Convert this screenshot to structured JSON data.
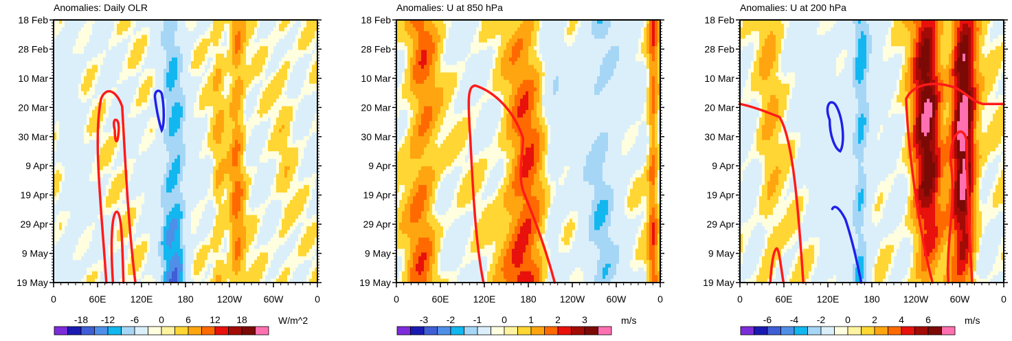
{
  "chart_data": [
    {
      "type": "heatmap",
      "title": "Anomalies: Daily OLR",
      "xlabel": "",
      "ylabel": "",
      "x_ticks": [
        "0",
        "60E",
        "120E",
        "180",
        "120W",
        "60W",
        "0"
      ],
      "y_ticks": [
        "18 Feb",
        "28 Feb",
        "10 Mar",
        "20 Mar",
        "30 Mar",
        "9 Apr",
        "19 Apr",
        "29 Apr",
        "9 May",
        "19 May"
      ],
      "y_direction": "time increases downward",
      "colorbar": {
        "ticks": [
          "-18",
          "-12",
          "-6",
          "0",
          "6",
          "12",
          "18"
        ],
        "unit": "W/m^2"
      },
      "dominant_features": [
        {
          "longitude": "150E-180",
          "sign": "negative",
          "peak_value": -18
        },
        {
          "longitude": "120W-90W",
          "sign": "positive",
          "peak_value": 8
        }
      ],
      "contours": [
        {
          "color": "red",
          "note": "closed contour ~60E-100E, 18 Mar - 19 May"
        },
        {
          "color": "blue",
          "note": "small contour ~145E-150E, 13 Mar - 27 Mar"
        }
      ]
    },
    {
      "type": "heatmap",
      "title": "Anomalies: U at 850 hPa",
      "xlabel": "",
      "ylabel": "",
      "x_ticks": [
        "0",
        "60E",
        "120E",
        "180",
        "120W",
        "60W",
        "0"
      ],
      "y_ticks": [
        "18 Feb",
        "28 Feb",
        "10 Mar",
        "20 Mar",
        "30 Mar",
        "9 Apr",
        "19 Apr",
        "29 Apr",
        "9 May",
        "19 May"
      ],
      "y_direction": "time increases downward",
      "colorbar": {
        "ticks": [
          "-3",
          "-2",
          "-1",
          "0",
          "1",
          "2",
          "3"
        ],
        "unit": "m/s"
      },
      "dominant_features": [
        {
          "longitude": "150E-200E",
          "sign": "positive",
          "peak_value": 2
        },
        {
          "longitude": "120W-60W",
          "sign": "negative",
          "peak_value": -1
        }
      ],
      "contours": [
        {
          "color": "red",
          "note": "contour ~105E-205E, 12 Mar - 19 May"
        }
      ]
    },
    {
      "type": "heatmap",
      "title": "Anomalies: U at 200 hPa",
      "xlabel": "",
      "ylabel": "",
      "x_ticks": [
        "0",
        "60E",
        "120E",
        "180",
        "120W",
        "60W",
        "0"
      ],
      "y_ticks": [
        "18 Feb",
        "28 Feb",
        "10 Mar",
        "20 Mar",
        "30 Mar",
        "9 Apr",
        "19 Apr",
        "29 Apr",
        "9 May",
        "19 May"
      ],
      "y_direction": "time increases downward",
      "colorbar": {
        "ticks": [
          "-6",
          "-4",
          "-2",
          "0",
          "2",
          "4",
          "6"
        ],
        "unit": "m/s"
      },
      "dominant_features": [
        {
          "longitude": "150E-180",
          "sign": "negative",
          "peak_value": -3
        },
        {
          "longitude": "130W-20W",
          "sign": "positive",
          "peak_value": 7
        }
      ],
      "contours": [
        {
          "color": "red",
          "note": "multiple contours, westward of 120W, 10 Mar - 19 May"
        },
        {
          "color": "blue",
          "note": "closed contour ~115E-140E, 18 Mar - 2 Apr"
        },
        {
          "color": "blue",
          "note": "contour ~120E-160E, 24 Apr - 19 May"
        }
      ]
    }
  ]
}
